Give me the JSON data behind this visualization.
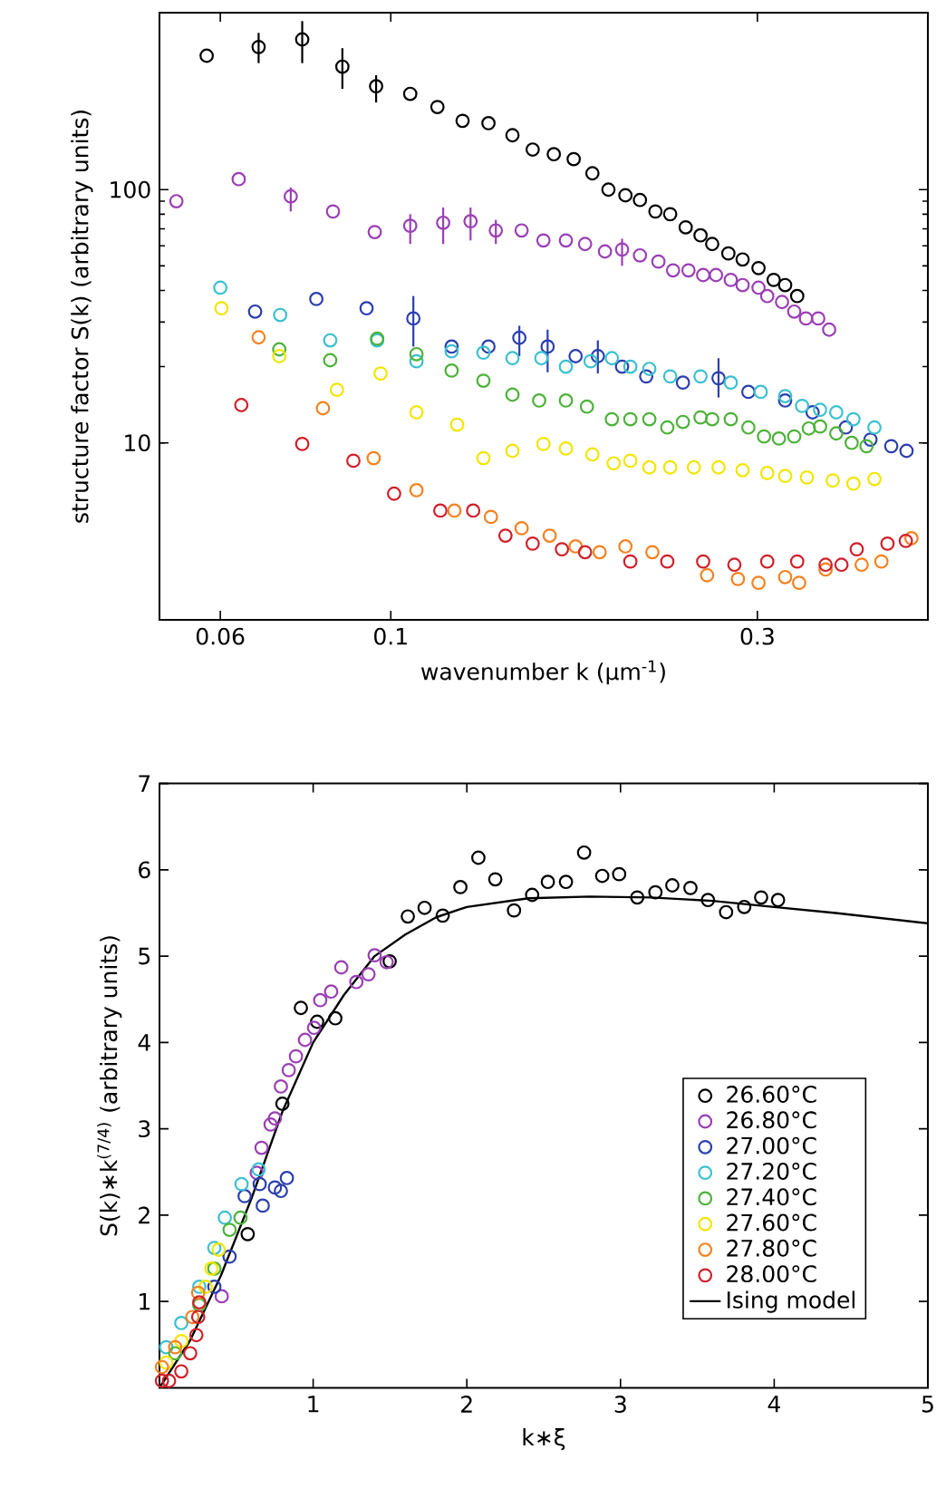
{
  "chart_data": [
    {
      "type": "scatter",
      "xlabel": "wavenumber k (μm$^{-1}$)",
      "ylabel": "structure factor S(k) (arbitrary units)",
      "log": "xy",
      "marker": "circle",
      "xlim": [
        0.05,
        0.5
      ],
      "ylim": [
        2,
        500
      ],
      "xticks": [
        0.06,
        0.1,
        0.3
      ],
      "yticks": [
        10,
        100
      ],
      "series": [
        {
          "color": "#000000",
          "x": [
            0.0576,
            0.0673,
            0.0767,
            0.0865,
            0.0957,
            0.106,
            0.115,
            0.124,
            0.134,
            0.144,
            0.153,
            0.163,
            0.173,
            0.183,
            0.192,
            0.202,
            0.211,
            0.221,
            0.231,
            0.242,
            0.253,
            0.262,
            0.275,
            0.287,
            0.301,
            0.315,
            0.326,
            0.338
          ],
          "values": [
            338,
            366,
            392,
            306,
            256,
            239,
            212,
            187,
            183,
            164,
            144,
            138,
            132,
            116,
            100,
            95,
            91,
            82,
            80,
            71,
            66,
            61,
            56,
            53,
            49,
            44,
            42,
            38
          ],
          "errors": [
            null,
            [
              316,
              416
            ],
            [
              316,
              463
            ],
            [
              250,
              362
            ],
            [
              221,
              283
            ],
            null,
            null,
            null,
            null,
            null,
            null,
            null,
            null,
            null,
            null,
            null,
            null,
            null,
            null,
            null,
            null,
            null,
            null,
            null,
            null,
            null,
            null,
            null
          ]
        },
        {
          "color": "#9b3fb5",
          "x": [
            0.0526,
            0.0634,
            0.0741,
            0.0841,
            0.0953,
            0.106,
            0.117,
            0.127,
            0.137,
            0.148,
            0.158,
            0.169,
            0.179,
            0.19,
            0.2,
            0.211,
            0.223,
            0.233,
            0.244,
            0.255,
            0.265,
            0.277,
            0.287,
            0.301,
            0.309,
            0.323,
            0.335,
            0.347,
            0.36,
            0.372
          ],
          "values": [
            90,
            110,
            94,
            82,
            68,
            72,
            74,
            75,
            69,
            69,
            63,
            63,
            61,
            57,
            58,
            55,
            52,
            48,
            48,
            46,
            46,
            44,
            42,
            41,
            38,
            36,
            33,
            31,
            31,
            28
          ],
          "errors": [
            null,
            null,
            [
              82,
              102
            ],
            null,
            null,
            [
              61,
              80
            ],
            [
              61,
              85
            ],
            [
              63,
              85
            ],
            [
              61,
              76
            ],
            null,
            null,
            null,
            null,
            null,
            [
              50,
              64
            ],
            null,
            null,
            null,
            null,
            null,
            null,
            null,
            null,
            null,
            null,
            null,
            null,
            null,
            null,
            null
          ]
        },
        {
          "color": "#2b3fae",
          "x": [
            0.0666,
            0.08,
            0.093,
            0.107,
            0.12,
            0.134,
            0.147,
            0.16,
            0.174,
            0.186,
            0.2,
            0.215,
            0.24,
            0.267,
            0.292,
            0.326,
            0.354,
            0.391,
            0.421,
            0.448,
            0.469
          ],
          "values": [
            33,
            37,
            34,
            31,
            24,
            24,
            26,
            24,
            22,
            22,
            20,
            18.3,
            17.3,
            18,
            15.9,
            14.7,
            13.2,
            11.5,
            10.3,
            9.7,
            9.3
          ],
          "errors": [
            null,
            null,
            null,
            [
              24,
              38
            ],
            null,
            null,
            [
              22,
              29
            ],
            [
              19,
              28
            ],
            null,
            [
              18.8,
              25.4
            ],
            null,
            null,
            null,
            [
              15.1,
              21.6
            ],
            null,
            null,
            null,
            null,
            null,
            null,
            null
          ]
        },
        {
          "color": "#3cc0d0",
          "x": [
            0.06,
            0.0718,
            0.0834,
            0.096,
            0.108,
            0.12,
            0.132,
            0.144,
            0.157,
            0.169,
            0.182,
            0.194,
            0.205,
            0.217,
            0.231,
            0.253,
            0.277,
            0.303,
            0.326,
            0.343,
            0.362,
            0.38,
            0.4,
            0.426
          ],
          "values": [
            41,
            32,
            25.4,
            25.4,
            21,
            23,
            22.7,
            21.6,
            21.6,
            20,
            21,
            21.6,
            20,
            19.6,
            18.3,
            18.3,
            17.3,
            15.9,
            15.3,
            14,
            13.5,
            13.2,
            12.4,
            11.5
          ]
        },
        {
          "color": "#4db23a",
          "x": [
            0.0716,
            0.0834,
            0.096,
            0.108,
            0.12,
            0.132,
            0.144,
            0.156,
            0.169,
            0.18,
            0.194,
            0.205,
            0.217,
            0.229,
            0.24,
            0.253,
            0.262,
            0.277,
            0.292,
            0.306,
            0.32,
            0.335,
            0.35,
            0.362,
            0.38,
            0.398,
            0.416
          ],
          "values": [
            23.4,
            21.2,
            25.8,
            22.4,
            19.3,
            17.6,
            15.5,
            14.7,
            14.7,
            13.9,
            12.4,
            12.4,
            12.4,
            11.5,
            12.1,
            12.6,
            12.4,
            12.4,
            11.5,
            10.6,
            10.4,
            10.6,
            11.4,
            11.6,
            10.9,
            10,
            9.7
          ]
        },
        {
          "color": "#f2e600",
          "x": [
            0.0602,
            0.0716,
            0.0851,
            0.097,
            0.108,
            0.122,
            0.132,
            0.144,
            0.158,
            0.169,
            0.183,
            0.195,
            0.205,
            0.217,
            0.231,
            0.248,
            0.267,
            0.287,
            0.309,
            0.326,
            0.348,
            0.376,
            0.4,
            0.426
          ],
          "values": [
            34,
            22,
            16.2,
            18.8,
            13.2,
            11.8,
            8.7,
            9.3,
            9.9,
            9.5,
            9.0,
            8.3,
            8.5,
            8.0,
            8.0,
            8.0,
            8.0,
            7.8,
            7.6,
            7.4,
            7.3,
            7.1,
            6.9,
            7.2
          ]
        },
        {
          "color": "#f58220",
          "x": [
            0.0673,
            0.0816,
            0.095,
            0.108,
            0.121,
            0.135,
            0.148,
            0.161,
            0.174,
            0.187,
            0.202,
            0.219,
            0.258,
            0.283,
            0.301,
            0.326,
            0.34,
            0.368,
            0.41,
            0.435,
            0.476
          ],
          "values": [
            26.1,
            13.7,
            8.7,
            6.5,
            5.4,
            5.1,
            4.6,
            4.3,
            3.9,
            3.7,
            3.9,
            3.7,
            3.0,
            2.9,
            2.8,
            2.95,
            2.8,
            3.16,
            3.3,
            3.4,
            4.2
          ]
        },
        {
          "color": "#d0202a",
          "x": [
            0.0639,
            0.0767,
            0.0894,
            0.101,
            0.116,
            0.128,
            0.141,
            0.153,
            0.167,
            0.179,
            0.205,
            0.229,
            0.255,
            0.28,
            0.309,
            0.338,
            0.368,
            0.386,
            0.404,
            0.443,
            0.468
          ],
          "values": [
            14.1,
            9.9,
            8.5,
            6.3,
            5.4,
            5.4,
            4.3,
            4.0,
            3.8,
            3.7,
            3.4,
            3.4,
            3.4,
            3.3,
            3.4,
            3.4,
            3.3,
            3.3,
            3.8,
            4.0,
            4.1
          ]
        }
      ]
    },
    {
      "type": "scatter",
      "xlabel": "k∗ξ",
      "ylabel": "S(k)∗k$^{(7/4)}$ (arbitrary units)",
      "marker": "circle",
      "legend": "bottom right",
      "xlim": [
        0,
        5
      ],
      "ylim": [
        0,
        7
      ],
      "xticks": [
        1,
        2,
        3,
        4,
        5
      ],
      "yticks": [
        1,
        2,
        3,
        4,
        5,
        6,
        7
      ],
      "series": [
        {
          "name": "26.60°C",
          "color": "#000000",
          "x": [
            0.574,
            0.8,
            0.92,
            1.026,
            1.144,
            1.498,
            1.616,
            1.725,
            1.843,
            1.958,
            2.075,
            2.185,
            2.307,
            2.425,
            2.527,
            2.645,
            2.763,
            2.881,
            2.991,
            3.109,
            3.227,
            3.337,
            3.455,
            3.569,
            3.687,
            3.805,
            3.915,
            4.025
          ],
          "values": [
            1.78,
            3.29,
            4.4,
            4.24,
            4.28,
            4.94,
            5.46,
            5.56,
            5.47,
            5.8,
            6.14,
            5.89,
            5.53,
            5.71,
            5.86,
            5.86,
            6.2,
            5.93,
            5.95,
            5.68,
            5.74,
            5.82,
            5.79,
            5.65,
            5.51,
            5.57,
            5.68,
            5.65
          ]
        },
        {
          "name": "26.80°C",
          "color": "#9b3fb5",
          "x": [
            0.405,
            0.633,
            0.664,
            0.723,
            0.751,
            0.79,
            0.841,
            0.888,
            0.947,
            1.006,
            1.046,
            1.117,
            1.183,
            1.281,
            1.36,
            1.4,
            1.478
          ],
          "values": [
            1.06,
            2.49,
            2.78,
            3.05,
            3.12,
            3.49,
            3.68,
            3.84,
            4.03,
            4.17,
            4.49,
            4.59,
            4.87,
            4.7,
            4.79,
            5.01,
            4.93
          ]
        },
        {
          "name": "27.00°C",
          "color": "#2b3fae",
          "x": [
            0.357,
            0.456,
            0.554,
            0.652,
            0.672,
            0.751,
            0.79,
            0.829
          ],
          "values": [
            1.17,
            1.52,
            2.22,
            2.36,
            2.11,
            2.32,
            2.28,
            2.43
          ]
        },
        {
          "name": "27.20°C",
          "color": "#3cc0d0",
          "x": [
            0.044,
            0.142,
            0.259,
            0.357,
            0.425,
            0.534,
            0.645
          ],
          "values": [
            0.47,
            0.75,
            1.17,
            1.62,
            1.97,
            2.36,
            2.53
          ]
        },
        {
          "name": "27.40°C",
          "color": "#4db23a",
          "x": [
            0.102,
            0.259,
            0.357,
            0.456,
            0.527
          ],
          "values": [
            0.4,
            0.96,
            1.38,
            1.83,
            1.97
          ]
        },
        {
          "name": "27.60°C",
          "color": "#f2e600",
          "x": [
            0.044,
            0.142,
            0.3,
            0.338,
            0.385
          ],
          "values": [
            0.29,
            0.54,
            1.17,
            1.38,
            1.6
          ]
        },
        {
          "name": "27.80°C",
          "color": "#f58220",
          "x": [
            0.016,
            0.102,
            0.214,
            0.252
          ],
          "values": [
            0.24,
            0.47,
            0.82,
            1.1
          ]
        },
        {
          "name": "28.00°C",
          "color": "#d0202a",
          "x": [
            0.016,
            0.062,
            0.142,
            0.2,
            0.24,
            0.252,
            0.259
          ],
          "values": [
            0.08,
            0.08,
            0.19,
            0.4,
            0.61,
            0.82,
            0.99
          ]
        },
        {
          "name": "Ising model",
          "type": "line",
          "marker": "none",
          "color": "#000000",
          "x": [
            0,
            0.2,
            0.4,
            0.6,
            0.8,
            1.0,
            1.2,
            1.4,
            1.6,
            1.8,
            2.0,
            2.4,
            2.8,
            3.2,
            3.6,
            4.0,
            4.4,
            5.0
          ],
          "values": [
            0,
            0.55,
            1.3,
            2.2,
            3.2,
            4.0,
            4.55,
            5.0,
            5.25,
            5.45,
            5.57,
            5.67,
            5.69,
            5.68,
            5.64,
            5.57,
            5.5,
            5.38
          ]
        }
      ]
    }
  ]
}
